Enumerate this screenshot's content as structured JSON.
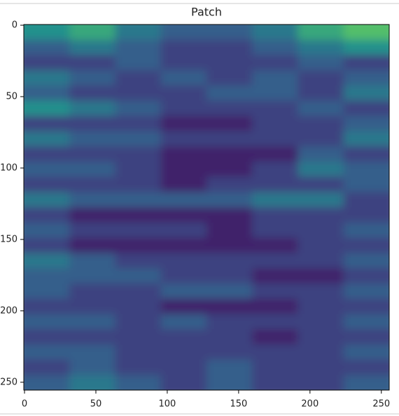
{
  "chart_data": {
    "type": "heatmap",
    "title": "Patch",
    "colormap": "viridis",
    "clim": [
      0,
      1
    ],
    "xlim": [
      -0.5,
      255.5
    ],
    "ylim": [
      255.5,
      -0.5
    ],
    "xticks": [
      0,
      50,
      100,
      150,
      200,
      250
    ],
    "yticks": [
      0,
      50,
      100,
      150,
      200,
      250
    ],
    "z": [
      [
        0.5,
        0.6,
        0.4,
        0.3,
        0.3,
        0.4,
        0.6,
        0.7
      ],
      [
        0.3,
        0.4,
        0.3,
        0.2,
        0.2,
        0.3,
        0.4,
        0.5
      ],
      [
        0.2,
        0.2,
        0.3,
        0.2,
        0.2,
        0.2,
        0.3,
        0.2
      ],
      [
        0.4,
        0.3,
        0.2,
        0.3,
        0.2,
        0.3,
        0.2,
        0.3
      ],
      [
        0.3,
        0.2,
        0.2,
        0.2,
        0.3,
        0.3,
        0.2,
        0.4
      ],
      [
        0.5,
        0.4,
        0.3,
        0.2,
        0.2,
        0.2,
        0.3,
        0.2
      ],
      [
        0.2,
        0.2,
        0.2,
        0.1,
        0.1,
        0.2,
        0.2,
        0.3
      ],
      [
        0.4,
        0.3,
        0.3,
        0.2,
        0.2,
        0.2,
        0.2,
        0.4
      ],
      [
        0.2,
        0.2,
        0.2,
        0.1,
        0.1,
        0.1,
        0.3,
        0.2
      ],
      [
        0.3,
        0.3,
        0.2,
        0.1,
        0.1,
        0.2,
        0.4,
        0.3
      ],
      [
        0.2,
        0.2,
        0.2,
        0.1,
        0.2,
        0.2,
        0.2,
        0.3
      ],
      [
        0.4,
        0.3,
        0.3,
        0.3,
        0.3,
        0.4,
        0.4,
        0.2
      ],
      [
        0.2,
        0.1,
        0.1,
        0.1,
        0.1,
        0.2,
        0.2,
        0.2
      ],
      [
        0.3,
        0.2,
        0.2,
        0.2,
        0.1,
        0.2,
        0.2,
        0.3
      ],
      [
        0.2,
        0.1,
        0.1,
        0.1,
        0.1,
        0.1,
        0.2,
        0.2
      ],
      [
        0.4,
        0.3,
        0.2,
        0.2,
        0.2,
        0.2,
        0.2,
        0.3
      ],
      [
        0.3,
        0.3,
        0.3,
        0.2,
        0.2,
        0.1,
        0.1,
        0.2
      ],
      [
        0.3,
        0.2,
        0.2,
        0.3,
        0.3,
        0.2,
        0.2,
        0.3
      ],
      [
        0.2,
        0.2,
        0.2,
        0.1,
        0.1,
        0.1,
        0.2,
        0.2
      ],
      [
        0.3,
        0.3,
        0.2,
        0.3,
        0.2,
        0.2,
        0.2,
        0.3
      ],
      [
        0.2,
        0.2,
        0.2,
        0.2,
        0.2,
        0.1,
        0.2,
        0.2
      ],
      [
        0.3,
        0.3,
        0.2,
        0.2,
        0.2,
        0.2,
        0.2,
        0.3
      ],
      [
        0.2,
        0.3,
        0.2,
        0.2,
        0.3,
        0.2,
        0.2,
        0.2
      ],
      [
        0.3,
        0.4,
        0.3,
        0.2,
        0.3,
        0.2,
        0.2,
        0.3
      ]
    ]
  }
}
